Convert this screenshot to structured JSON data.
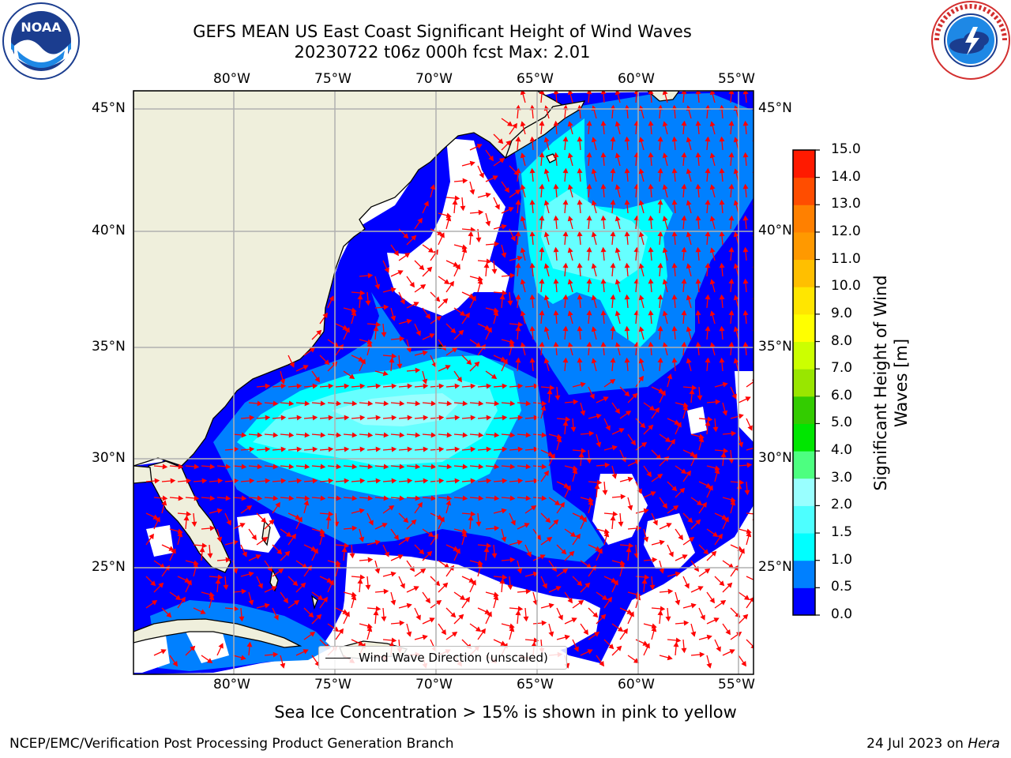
{
  "title": {
    "line1": "GEFS MEAN US East Coast Significant Height of Wind Waves",
    "line2": "20230722 t06z 000h fcst   Max: 2.01"
  },
  "map": {
    "lon_labels": [
      "80°W",
      "75°W",
      "70°W",
      "65°W",
      "60°W",
      "55°W"
    ],
    "lat_labels": [
      "45°N",
      "40°N",
      "35°N",
      "30°N",
      "25°N"
    ],
    "legend_label": "Wind Wave Direction (unscaled)"
  },
  "colorbar": {
    "label_line1": "Significant Height of Wind",
    "label_line2": "Waves [m]",
    "ticks": [
      "0.0",
      "0.5",
      "1.0",
      "1.5",
      "2.0",
      "3.0",
      "4.0",
      "5.0",
      "6.0",
      "7.0",
      "8.0",
      "9.0",
      "10.0",
      "11.0",
      "12.0",
      "13.0",
      "14.0",
      "15.0"
    ],
    "colors": [
      "#0000ff",
      "#0080ff",
      "#00ffff",
      "#4dffff",
      "#99ffff",
      "#4dff80",
      "#00e600",
      "#33cc00",
      "#99e600",
      "#ccff00",
      "#ffff00",
      "#ffe600",
      "#ffbf00",
      "#ff9900",
      "#ff8000",
      "#ff4d00",
      "#ff1a00"
    ]
  },
  "footer": {
    "sea_ice_note": "Sea Ice Concentration > 15% is shown in pink to yellow",
    "credit_left": "NCEP/EMC/Verification Post Processing Product Generation Branch",
    "credit_date": "24 Jul 2023 on ",
    "credit_host": "Hera"
  },
  "logos": {
    "noaa_text": "NOAA",
    "noaa_ring_text": "NATIONAL OCEANIC AND ATMOSPHERIC ADMINISTRATION",
    "nws_ring_text": "NATIONAL WEATHER SERVICE"
  },
  "colors": {
    "land": "#efefdc",
    "grid": "#b0b0b0",
    "arrow": "#ff0000",
    "wave_0": "#0000ff",
    "wave_05": "#0080ff",
    "wave_10": "#00ffff",
    "wave_15": "#4dffff",
    "wave_20": "#99ffff"
  }
}
